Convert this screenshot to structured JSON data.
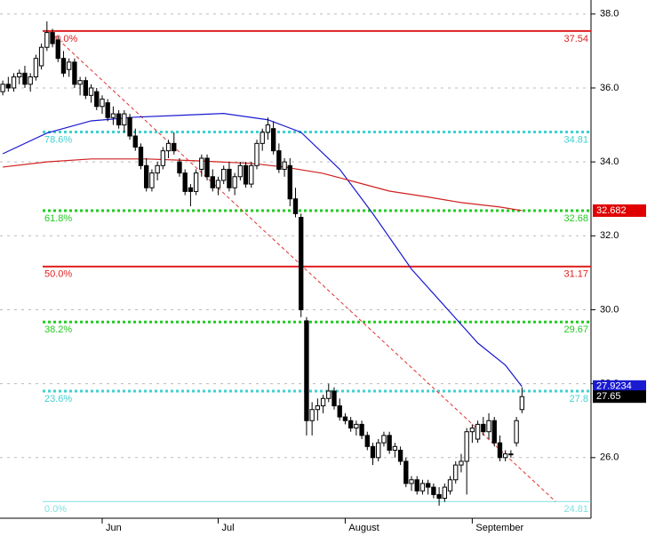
{
  "chart_data": {
    "type": "candlestick",
    "xlim": [
      -0.5,
      106.5
    ],
    "ylim": [
      24.36,
      38.38
    ],
    "xticks": [
      {
        "value": 18,
        "label": "Jun"
      },
      {
        "value": 39,
        "label": "Jul"
      },
      {
        "value": 62,
        "label": "August"
      },
      {
        "value": 85,
        "label": "September"
      }
    ],
    "yticks": [
      {
        "value": 26,
        "label": "26.0"
      },
      {
        "value": 28,
        "label": "28.0"
      },
      {
        "value": 30,
        "label": "30.0"
      },
      {
        "value": 32,
        "label": "32.0"
      },
      {
        "value": 34,
        "label": "34.0"
      },
      {
        "value": 36,
        "label": "36.0"
      },
      {
        "value": 38,
        "label": "38.0"
      }
    ],
    "grid": true,
    "up_color": "#ffffff",
    "down_color": "#000000",
    "ohlc": [
      [
        35.9,
        36.2,
        35.8,
        36.1
      ],
      [
        36.1,
        36.3,
        35.9,
        36.0
      ],
      [
        36.0,
        36.4,
        35.9,
        36.3
      ],
      [
        36.3,
        36.5,
        36.1,
        36.4
      ],
      [
        36.4,
        36.6,
        36.0,
        36.1
      ],
      [
        36.1,
        36.4,
        35.9,
        36.3
      ],
      [
        36.3,
        36.9,
        36.2,
        36.8
      ],
      [
        36.6,
        37.2,
        36.5,
        37.1
      ],
      [
        37.1,
        37.8,
        37.0,
        37.5
      ],
      [
        37.5,
        37.6,
        37.1,
        37.2
      ],
      [
        37.3,
        37.4,
        36.7,
        36.8
      ],
      [
        36.8,
        37.0,
        36.3,
        36.4
      ],
      [
        36.5,
        36.8,
        36.3,
        36.7
      ],
      [
        36.7,
        36.8,
        36.0,
        36.1
      ],
      [
        36.1,
        36.3,
        35.8,
        36.2
      ],
      [
        36.2,
        36.3,
        35.7,
        35.8
      ],
      [
        35.8,
        36.1,
        35.6,
        36.0
      ],
      [
        35.9,
        36.0,
        35.4,
        35.5
      ],
      [
        35.5,
        35.8,
        35.3,
        35.7
      ],
      [
        35.6,
        35.7,
        35.1,
        35.2
      ],
      [
        35.2,
        35.5,
        35.0,
        35.3
      ],
      [
        35.3,
        35.4,
        34.9,
        35.0
      ],
      [
        35.0,
        35.4,
        34.8,
        35.3
      ],
      [
        35.2,
        35.3,
        34.6,
        34.7
      ],
      [
        34.7,
        34.9,
        34.3,
        34.4
      ],
      [
        34.4,
        34.5,
        33.8,
        33.9
      ],
      [
        33.9,
        34.1,
        33.2,
        33.3
      ],
      [
        33.3,
        33.8,
        33.2,
        33.7
      ],
      [
        33.7,
        34.0,
        33.5,
        33.9
      ],
      [
        33.9,
        34.4,
        33.8,
        34.3
      ],
      [
        34.3,
        34.6,
        34.1,
        34.5
      ],
      [
        34.5,
        34.8,
        34.2,
        34.3
      ],
      [
        34.0,
        34.1,
        33.6,
        33.7
      ],
      [
        33.7,
        33.8,
        33.1,
        33.2
      ],
      [
        33.3,
        33.4,
        32.8,
        33.2
      ],
      [
        33.2,
        33.8,
        33.1,
        33.7
      ],
      [
        33.8,
        34.2,
        33.6,
        34.1
      ],
      [
        34.1,
        34.2,
        33.5,
        33.6
      ],
      [
        33.6,
        33.8,
        33.2,
        33.3
      ],
      [
        33.3,
        33.6,
        33.1,
        33.5
      ],
      [
        33.5,
        33.9,
        33.4,
        33.8
      ],
      [
        33.8,
        34.0,
        33.2,
        33.3
      ],
      [
        33.3,
        33.7,
        33.1,
        33.6
      ],
      [
        33.6,
        34.0,
        33.5,
        33.9
      ],
      [
        33.9,
        34.0,
        33.3,
        33.4
      ],
      [
        33.4,
        34.0,
        33.3,
        33.9
      ],
      [
        33.9,
        34.6,
        33.8,
        34.5
      ],
      [
        34.5,
        34.9,
        34.3,
        34.8
      ],
      [
        34.8,
        35.2,
        34.6,
        35.0
      ],
      [
        34.9,
        35.1,
        34.2,
        34.3
      ],
      [
        34.3,
        34.5,
        33.7,
        33.8
      ],
      [
        33.8,
        34.1,
        33.6,
        34.0
      ],
      [
        33.9,
        34.1,
        32.8,
        33.0
      ],
      [
        33.0,
        33.3,
        32.5,
        32.6
      ],
      [
        32.5,
        32.6,
        29.8,
        30.0
      ],
      [
        29.7,
        29.8,
        26.6,
        27.0
      ],
      [
        27.0,
        27.5,
        26.6,
        27.3
      ],
      [
        27.3,
        27.6,
        27.0,
        27.4
      ],
      [
        27.4,
        27.7,
        27.2,
        27.6
      ],
      [
        27.6,
        28.0,
        27.5,
        27.8
      ],
      [
        27.8,
        27.9,
        27.3,
        27.4
      ],
      [
        27.4,
        27.6,
        27.0,
        27.1
      ],
      [
        27.1,
        27.2,
        26.9,
        27.0
      ],
      [
        27.0,
        27.1,
        26.7,
        26.8
      ],
      [
        26.8,
        27.0,
        26.6,
        26.9
      ],
      [
        26.9,
        27.0,
        26.5,
        26.6
      ],
      [
        26.6,
        26.7,
        26.2,
        26.3
      ],
      [
        26.3,
        26.4,
        25.8,
        26.0
      ],
      [
        26.0,
        26.5,
        25.9,
        26.4
      ],
      [
        26.4,
        26.7,
        26.3,
        26.6
      ],
      [
        26.6,
        26.7,
        26.1,
        26.2
      ],
      [
        26.2,
        26.4,
        26.0,
        26.3
      ],
      [
        26.2,
        26.3,
        25.8,
        25.9
      ],
      [
        25.9,
        26.0,
        25.2,
        25.3
      ],
      [
        25.3,
        25.5,
        25.1,
        25.4
      ],
      [
        25.4,
        25.5,
        25.0,
        25.1
      ],
      [
        25.1,
        25.4,
        25.0,
        25.3
      ],
      [
        25.3,
        25.4,
        25.0,
        25.2
      ],
      [
        25.2,
        25.3,
        24.9,
        25.0
      ],
      [
        25.0,
        25.2,
        24.7,
        24.9
      ],
      [
        24.9,
        25.3,
        24.8,
        25.2
      ],
      [
        25.1,
        25.5,
        25.0,
        25.4
      ],
      [
        25.4,
        25.9,
        25.3,
        25.8
      ],
      [
        25.8,
        26.1,
        25.6,
        25.9
      ],
      [
        25.9,
        26.8,
        25.0,
        26.7
      ],
      [
        26.7,
        26.9,
        26.4,
        26.8
      ],
      [
        26.5,
        27.0,
        26.4,
        26.9
      ],
      [
        26.9,
        27.1,
        26.6,
        26.7
      ],
      [
        26.7,
        27.2,
        26.5,
        27.0
      ],
      [
        27.0,
        27.1,
        26.3,
        26.4
      ],
      [
        26.4,
        26.6,
        25.9,
        26.0
      ],
      [
        26.0,
        26.2,
        25.9,
        26.1
      ],
      [
        26.1,
        26.2,
        26.0,
        26.1
      ],
      [
        26.4,
        27.1,
        26.3,
        27.0
      ],
      [
        27.3,
        27.9,
        27.2,
        27.65
      ]
    ],
    "series": [
      {
        "color": "#1a1ad0",
        "label_color": "#1a1ad0",
        "x": [
          0,
          8,
          16,
          24,
          32,
          40,
          48,
          54,
          61,
          67,
          74,
          80,
          86,
          91,
          94
        ],
        "values": [
          34.22,
          34.78,
          35.11,
          35.21,
          35.26,
          35.31,
          35.14,
          34.8,
          33.8,
          32.6,
          31.1,
          30.1,
          29.1,
          28.5,
          27.9234
        ]
      },
      {
        "color": "#d02020",
        "label_color": "#e00000",
        "x": [
          0,
          8,
          16,
          26,
          35,
          45,
          51,
          58,
          64,
          70,
          77,
          83,
          90,
          94
        ],
        "values": [
          33.86,
          34.0,
          34.08,
          34.08,
          34.03,
          33.96,
          33.86,
          33.69,
          33.45,
          33.21,
          33.05,
          32.9,
          32.78,
          32.682
        ]
      }
    ],
    "trendline": {
      "color": "#e03030",
      "x": [
        8.4,
        100.1
      ],
      "values": [
        37.54,
        24.81
      ]
    },
    "fib_levels": [
      {
        "label": "100.0%",
        "value": 37.54,
        "color": "#e02020",
        "style": "solid"
      },
      {
        "label": "78.6%",
        "value": 34.81,
        "color": "#40d0d0",
        "style": "dotted"
      },
      {
        "label": "61.8%",
        "value": 32.68,
        "color": "#22cc22",
        "style": "dotted"
      },
      {
        "label": "50.0%",
        "value": 31.17,
        "color": "#e02020",
        "style": "solid"
      },
      {
        "label": "38.2%",
        "value": 29.67,
        "color": "#22cc22",
        "style": "dotted"
      },
      {
        "label": "23.6%",
        "value": 27.8,
        "color": "#40d0d0",
        "style": "dotted"
      },
      {
        "label": "0.0%",
        "value": 24.81,
        "color": "#80e0e0",
        "style": "thin"
      }
    ]
  }
}
